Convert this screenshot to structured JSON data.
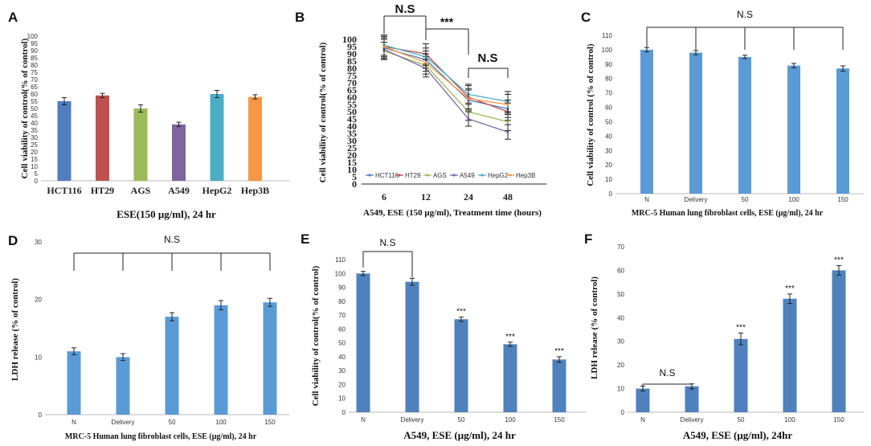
{
  "chart_data": [
    {
      "panel": "A",
      "type": "bar",
      "categories": [
        "HCT116",
        "HT29",
        "AGS",
        "A549",
        "HepG2",
        "Hep3B"
      ],
      "values": [
        55,
        59,
        50,
        39,
        60,
        58
      ],
      "errors": [
        2.5,
        1.5,
        2.5,
        1.5,
        2.5,
        1.5
      ],
      "colors": [
        "#4f7ebf",
        "#c0504d",
        "#9bbb59",
        "#8064a2",
        "#4bacc6",
        "#f79646"
      ],
      "ylabel": "Cell viability of control(% of control)",
      "xlabel": "ESE(150 μg/ml), 24 hr",
      "ylim": [
        0,
        100
      ],
      "yticks": [
        0,
        5,
        10,
        15,
        20,
        25,
        30,
        35,
        40,
        45,
        50,
        55,
        60,
        65,
        70,
        75,
        80,
        85,
        90,
        95,
        100
      ]
    },
    {
      "panel": "B",
      "type": "line",
      "x": [
        "6",
        "12",
        "24",
        "48"
      ],
      "series": [
        {
          "name": "HCT116",
          "color": "#4f7ebf",
          "values": [
            94,
            86,
            58,
            52
          ],
          "errors": [
            7,
            6,
            7,
            6
          ]
        },
        {
          "name": "HT29",
          "color": "#c0504d",
          "values": [
            95,
            90,
            60,
            50
          ],
          "errors": [
            8,
            7,
            8,
            6
          ]
        },
        {
          "name": "AGS",
          "color": "#9bbb59",
          "values": [
            92,
            82,
            50,
            43
          ],
          "errors": [
            6,
            6,
            6,
            6
          ]
        },
        {
          "name": "A549",
          "color": "#8064a2",
          "values": [
            93,
            80,
            45,
            36
          ],
          "errors": [
            7,
            6,
            5,
            5
          ]
        },
        {
          "name": "HepG2",
          "color": "#4bacc6",
          "values": [
            96,
            88,
            62,
            57
          ],
          "errors": [
            7,
            6,
            7,
            7
          ]
        },
        {
          "name": "Hep3B",
          "color": "#f79646",
          "values": [
            95,
            84,
            59,
            55
          ],
          "errors": [
            7,
            6,
            7,
            7
          ]
        }
      ],
      "ylabel": "Cell viability of control(% of control)",
      "xlabel": "A549, ESE (150 μg/ml), Treatment time (hours)",
      "ylim": [
        0,
        100
      ],
      "yticks": [
        0,
        5,
        10,
        15,
        20,
        25,
        30,
        35,
        40,
        45,
        50,
        55,
        60,
        65,
        70,
        75,
        80,
        85,
        90,
        95,
        100
      ],
      "annotations": [
        "N.S",
        "***",
        "N.S"
      ]
    },
    {
      "panel": "C",
      "type": "bar",
      "categories": [
        "N",
        "Delivery",
        "50",
        "100",
        "150"
      ],
      "values": [
        100,
        98,
        95,
        89,
        87
      ],
      "errors": [
        1.5,
        1.5,
        1.2,
        1.5,
        1.8
      ],
      "color": "#5b9bd5",
      "ylabel": "Cell viability of control (% of control)",
      "xlabel": "MRC-5 Human lung fibroblast cells, ESE (μg/ml), 24 hr",
      "ylim": [
        0,
        110
      ],
      "yticks": [
        0,
        10,
        20,
        30,
        40,
        50,
        60,
        70,
        80,
        90,
        100,
        110
      ],
      "annotation": "N.S"
    },
    {
      "panel": "D",
      "type": "bar",
      "categories": [
        "N",
        "Delivery",
        "50",
        "100",
        "150"
      ],
      "values": [
        11,
        10,
        17,
        19,
        19.5
      ],
      "errors": [
        0.6,
        0.6,
        0.7,
        0.8,
        0.7
      ],
      "color": "#5b9bd5",
      "ylabel": "LDH release (% of control)",
      "xlabel": "MRC-5 Human lung fibroblast cells, ESE (μg/ml), 24 hr",
      "ylim": [
        0,
        30
      ],
      "yticks": [
        0,
        10,
        20,
        30
      ],
      "annotation": "N.S"
    },
    {
      "panel": "E",
      "type": "bar",
      "categories": [
        "N",
        "Delivery",
        "50",
        "100",
        "150"
      ],
      "values": [
        100,
        94,
        67,
        49,
        38
      ],
      "errors": [
        1.5,
        2.5,
        1.5,
        1.5,
        2.0
      ],
      "color": "#4f81bd",
      "ylabel": "Cell viability of control(% of control)",
      "xlabel": "A549, ESE (μg/ml), 24 hr",
      "ylim": [
        0,
        110
      ],
      "yticks": [
        0,
        10,
        20,
        30,
        40,
        50,
        60,
        70,
        80,
        90,
        100,
        110
      ],
      "significance": [
        "",
        "",
        "***",
        "***",
        "***"
      ],
      "annotation": "N.S"
    },
    {
      "panel": "F",
      "type": "bar",
      "categories": [
        "N",
        "Delivery",
        "50",
        "100",
        "150"
      ],
      "values": [
        10,
        11,
        31,
        48,
        60
      ],
      "errors": [
        1.0,
        1.0,
        2.5,
        2.0,
        2.0
      ],
      "color": "#4f81bd",
      "ylabel": "LDH release (% of control)",
      "xlabel": "A549, ESE (μg/ml), 24hr",
      "ylim": [
        0,
        70
      ],
      "yticks": [
        0,
        10,
        20,
        30,
        40,
        50,
        60,
        70
      ],
      "significance": [
        "",
        "",
        "***",
        "***",
        "***"
      ],
      "annotation": "N.S"
    }
  ]
}
